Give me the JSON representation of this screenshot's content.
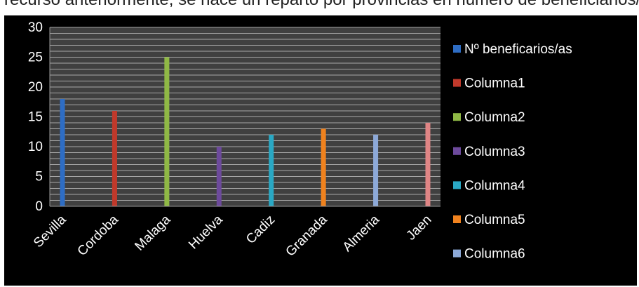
{
  "header_text": "recurso anteriormente, se hace un reparto por provincias en número de beneficiarios/as, se por provincias:",
  "chart_data": {
    "type": "bar",
    "title": "",
    "xlabel": "",
    "ylabel": "",
    "ylim": [
      0,
      30
    ],
    "yticks": [
      0,
      5,
      10,
      15,
      20,
      25,
      30
    ],
    "grid": true,
    "legend_position": "right",
    "categories": [
      "Sevilla",
      "Cordoba",
      "Malaga",
      "Huelva",
      "Cadiz",
      "Granada",
      "Almeria",
      "Jaen"
    ],
    "values": [
      18,
      16,
      25,
      10,
      12,
      13,
      12,
      14
    ],
    "bar_colors": [
      "#2e6dc4",
      "#c0392b",
      "#8fb845",
      "#6d4a9c",
      "#2aa8c4",
      "#f0821e",
      "#8da9d8",
      "#e08585"
    ],
    "legend": [
      {
        "name": "Nº beneficarios/as",
        "color": "#2e6dc4"
      },
      {
        "name": "Columna1",
        "color": "#c0392b"
      },
      {
        "name": "Columna2",
        "color": "#8fb845"
      },
      {
        "name": "Columna3",
        "color": "#6d4a9c"
      },
      {
        "name": "Columna4",
        "color": "#2aa8c4"
      },
      {
        "name": "Columna5",
        "color": "#f0821e"
      },
      {
        "name": "Columna6",
        "color": "#8da9d8"
      }
    ]
  }
}
